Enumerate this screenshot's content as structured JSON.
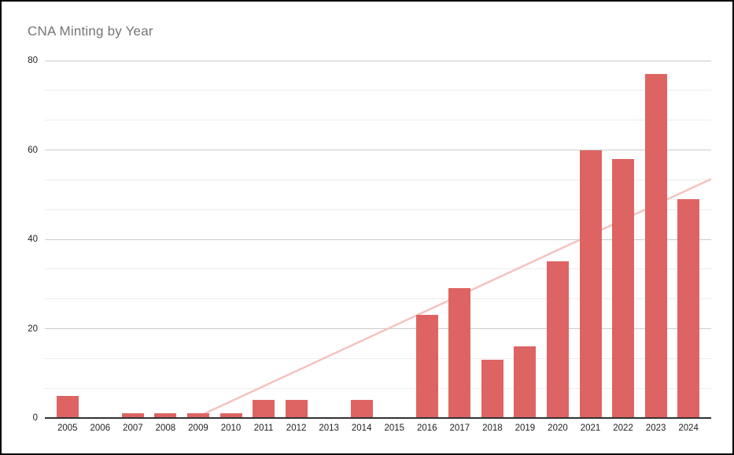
{
  "chart_data": {
    "type": "bar",
    "title": "CNA Minting by Year",
    "xlabel": "",
    "ylabel": "",
    "categories": [
      "2005",
      "2006",
      "2007",
      "2008",
      "2009",
      "2010",
      "2011",
      "2012",
      "2013",
      "2014",
      "2015",
      "2016",
      "2017",
      "2018",
      "2019",
      "2020",
      "2021",
      "2022",
      "2023",
      "2024"
    ],
    "values": [
      5,
      0,
      1,
      1,
      1,
      1,
      4,
      4,
      0,
      4,
      0,
      23,
      29,
      13,
      16,
      35,
      60,
      58,
      77,
      49
    ],
    "ylim": [
      0,
      80
    ],
    "y_ticks": [
      0,
      20,
      40,
      60,
      80
    ],
    "minor_gridlines_per_major": 3,
    "grid": true,
    "legend_position": "none",
    "trendline": {
      "type": "linear",
      "baseline_cross_category_index": 3.9,
      "value_at_baseline_cross": 0,
      "value_at_right_edge": 53.5
    }
  },
  "colors": {
    "bar": "#dd6462",
    "trendline": "#f4c2c0",
    "title_text": "#757575",
    "axis_text": "#1f1f1f",
    "major_gridline": "#cccccc",
    "minor_gridline": "#ededed",
    "axis_line": "#333333",
    "background": "#ffffff",
    "frame_border": "#000000"
  }
}
